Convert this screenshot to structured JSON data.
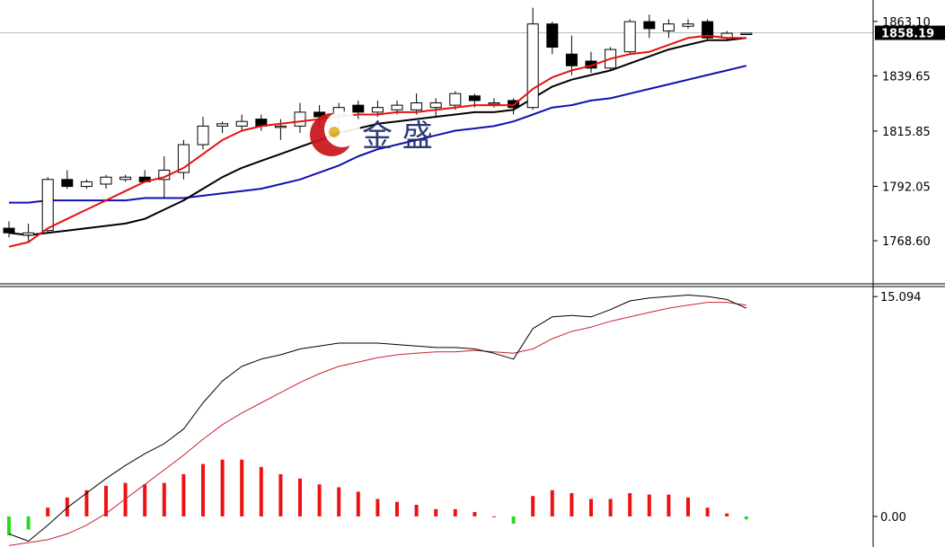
{
  "watermark": {
    "text": "金 盛",
    "logo": "jinsheng-logo"
  },
  "colors": {
    "bull_body": "#ffffff",
    "bear_body": "#000000",
    "candle_edge": "#000000",
    "ma_fast": "#e81010",
    "ma_mid": "#000000",
    "ma_slow": "#1010b0",
    "hist_pos": "#ee1111",
    "hist_neg": "#22dd22",
    "macd_line": "#000000",
    "signal_line": "#cc2233",
    "grid_line": "#bbbbbb",
    "axis": "#000000",
    "price_tag_bg": "#000000"
  },
  "chart_data": [
    {
      "type": "candlestick",
      "title": "",
      "ylim": [
        1757,
        1870
      ],
      "y_ticks": [
        "1863.10",
        "1839.65",
        "1815.85",
        "1792.05",
        "1768.60"
      ],
      "y_tick_values": [
        1863.1,
        1839.65,
        1815.85,
        1792.05,
        1768.6
      ],
      "current_price": "1858.19",
      "current_price_value": 1858.19,
      "candles": [
        {
          "o": 1774,
          "h": 1777,
          "l": 1770,
          "c": 1772
        },
        {
          "o": 1771,
          "h": 1776,
          "l": 1768,
          "c": 1772
        },
        {
          "o": 1773,
          "h": 1796,
          "l": 1772,
          "c": 1795
        },
        {
          "o": 1795,
          "h": 1799,
          "l": 1791,
          "c": 1792
        },
        {
          "o": 1792,
          "h": 1795,
          "l": 1791,
          "c": 1794
        },
        {
          "o": 1793,
          "h": 1797,
          "l": 1791,
          "c": 1796
        },
        {
          "o": 1795,
          "h": 1797,
          "l": 1794,
          "c": 1796
        },
        {
          "o": 1796,
          "h": 1799,
          "l": 1794,
          "c": 1794
        },
        {
          "o": 1795,
          "h": 1805,
          "l": 1787,
          "c": 1799
        },
        {
          "o": 1798,
          "h": 1812,
          "l": 1795,
          "c": 1810
        },
        {
          "o": 1810,
          "h": 1822,
          "l": 1808,
          "c": 1818
        },
        {
          "o": 1818,
          "h": 1820,
          "l": 1815,
          "c": 1819
        },
        {
          "o": 1818,
          "h": 1823,
          "l": 1816,
          "c": 1820
        },
        {
          "o": 1821,
          "h": 1823,
          "l": 1816,
          "c": 1818
        },
        {
          "o": 1818,
          "h": 1821,
          "l": 1812,
          "c": 1818
        },
        {
          "o": 1818,
          "h": 1828,
          "l": 1815,
          "c": 1824
        },
        {
          "o": 1824,
          "h": 1827,
          "l": 1818,
          "c": 1822
        },
        {
          "o": 1823,
          "h": 1828,
          "l": 1815,
          "c": 1826
        },
        {
          "o": 1827,
          "h": 1829,
          "l": 1821,
          "c": 1824
        },
        {
          "o": 1824,
          "h": 1829,
          "l": 1822,
          "c": 1826
        },
        {
          "o": 1825,
          "h": 1829,
          "l": 1823,
          "c": 1827
        },
        {
          "o": 1825,
          "h": 1832,
          "l": 1823,
          "c": 1828
        },
        {
          "o": 1826,
          "h": 1830,
          "l": 1822,
          "c": 1828
        },
        {
          "o": 1827,
          "h": 1833,
          "l": 1825,
          "c": 1832
        },
        {
          "o": 1831,
          "h": 1832,
          "l": 1826,
          "c": 1829
        },
        {
          "o": 1828,
          "h": 1830,
          "l": 1826,
          "c": 1828
        },
        {
          "o": 1829,
          "h": 1830,
          "l": 1823,
          "c": 1826
        },
        {
          "o": 1826,
          "h": 1869,
          "l": 1825,
          "c": 1862
        },
        {
          "o": 1862,
          "h": 1863,
          "l": 1849,
          "c": 1852
        },
        {
          "o": 1849,
          "h": 1857,
          "l": 1840,
          "c": 1844
        },
        {
          "o": 1846,
          "h": 1850,
          "l": 1841,
          "c": 1843
        },
        {
          "o": 1843,
          "h": 1852,
          "l": 1842,
          "c": 1851
        },
        {
          "o": 1850,
          "h": 1864,
          "l": 1849,
          "c": 1863
        },
        {
          "o": 1863,
          "h": 1866,
          "l": 1856,
          "c": 1860
        },
        {
          "o": 1859,
          "h": 1864,
          "l": 1856,
          "c": 1862
        },
        {
          "o": 1861,
          "h": 1864,
          "l": 1860,
          "c": 1862
        },
        {
          "o": 1863,
          "h": 1864,
          "l": 1855,
          "c": 1856
        },
        {
          "o": 1856,
          "h": 1859,
          "l": 1855,
          "c": 1858
        },
        {
          "o": 1858,
          "h": 1858,
          "l": 1858,
          "c": 1858
        }
      ],
      "ma_fast": [
        1766,
        1768,
        1774,
        1778,
        1782,
        1786,
        1790,
        1794,
        1796,
        1800,
        1806,
        1812,
        1816,
        1818,
        1819,
        1820,
        1821,
        1822,
        1823,
        1823,
        1824,
        1824,
        1825,
        1826,
        1827,
        1827,
        1827,
        1834,
        1839,
        1842,
        1844,
        1847,
        1849,
        1850,
        1853,
        1856,
        1857,
        1856,
        1856
      ],
      "ma_mid": [
        1772,
        1771,
        1772,
        1773,
        1774,
        1775,
        1776,
        1778,
        1782,
        1786,
        1791,
        1796,
        1800,
        1803,
        1806,
        1809,
        1812,
        1815,
        1817,
        1819,
        1820,
        1821,
        1822,
        1823,
        1824,
        1824,
        1825,
        1830,
        1835,
        1838,
        1840,
        1842,
        1845,
        1848,
        1851,
        1853,
        1855,
        1855,
        1856
      ],
      "ma_slow": [
        1785,
        1785,
        1786,
        1786,
        1786,
        1786,
        1786,
        1787,
        1787,
        1787,
        1788,
        1789,
        1790,
        1791,
        1793,
        1795,
        1798,
        1801,
        1805,
        1808,
        1810,
        1812,
        1814,
        1816,
        1817,
        1818,
        1820,
        1823,
        1826,
        1827,
        1829,
        1830,
        1832,
        1834,
        1836,
        1838,
        1840,
        1842,
        1844
      ]
    },
    {
      "type": "bar+line",
      "title": "",
      "ylim": [
        -2.1,
        15.6
      ],
      "y_ticks": [
        "15.094",
        "0.00"
      ],
      "y_tick_values": [
        15.094,
        0
      ],
      "histogram": [
        -1.3,
        -0.9,
        0.6,
        1.3,
        1.8,
        2.1,
        2.3,
        2.2,
        2.3,
        2.9,
        3.6,
        3.9,
        3.9,
        3.4,
        2.9,
        2.6,
        2.2,
        2.0,
        1.7,
        1.2,
        1.0,
        0.8,
        0.5,
        0.5,
        0.3,
        0.0,
        -0.5,
        1.4,
        1.8,
        1.6,
        1.2,
        1.2,
        1.6,
        1.5,
        1.5,
        1.3,
        0.6,
        0.2,
        -0.2
      ],
      "macd": [
        -1.2,
        -1.7,
        -0.6,
        0.6,
        1.6,
        2.6,
        3.5,
        4.3,
        5.0,
        6.0,
        7.8,
        9.3,
        10.3,
        10.8,
        11.1,
        11.5,
        11.7,
        11.9,
        11.9,
        11.9,
        11.8,
        11.7,
        11.6,
        11.6,
        11.5,
        11.2,
        10.8,
        12.9,
        13.7,
        13.8,
        13.7,
        14.2,
        14.8,
        15.0,
        15.1,
        15.2,
        15.1,
        14.9,
        14.3
      ],
      "signal": [
        -2.0,
        -1.8,
        -1.6,
        -1.2,
        -0.6,
        0.2,
        1.2,
        2.2,
        3.2,
        4.2,
        5.3,
        6.3,
        7.1,
        7.8,
        8.5,
        9.2,
        9.8,
        10.3,
        10.6,
        10.9,
        11.1,
        11.2,
        11.3,
        11.3,
        11.4,
        11.3,
        11.2,
        11.5,
        12.2,
        12.7,
        13.0,
        13.4,
        13.7,
        14.0,
        14.3,
        14.5,
        14.7,
        14.7,
        14.5
      ]
    }
  ]
}
